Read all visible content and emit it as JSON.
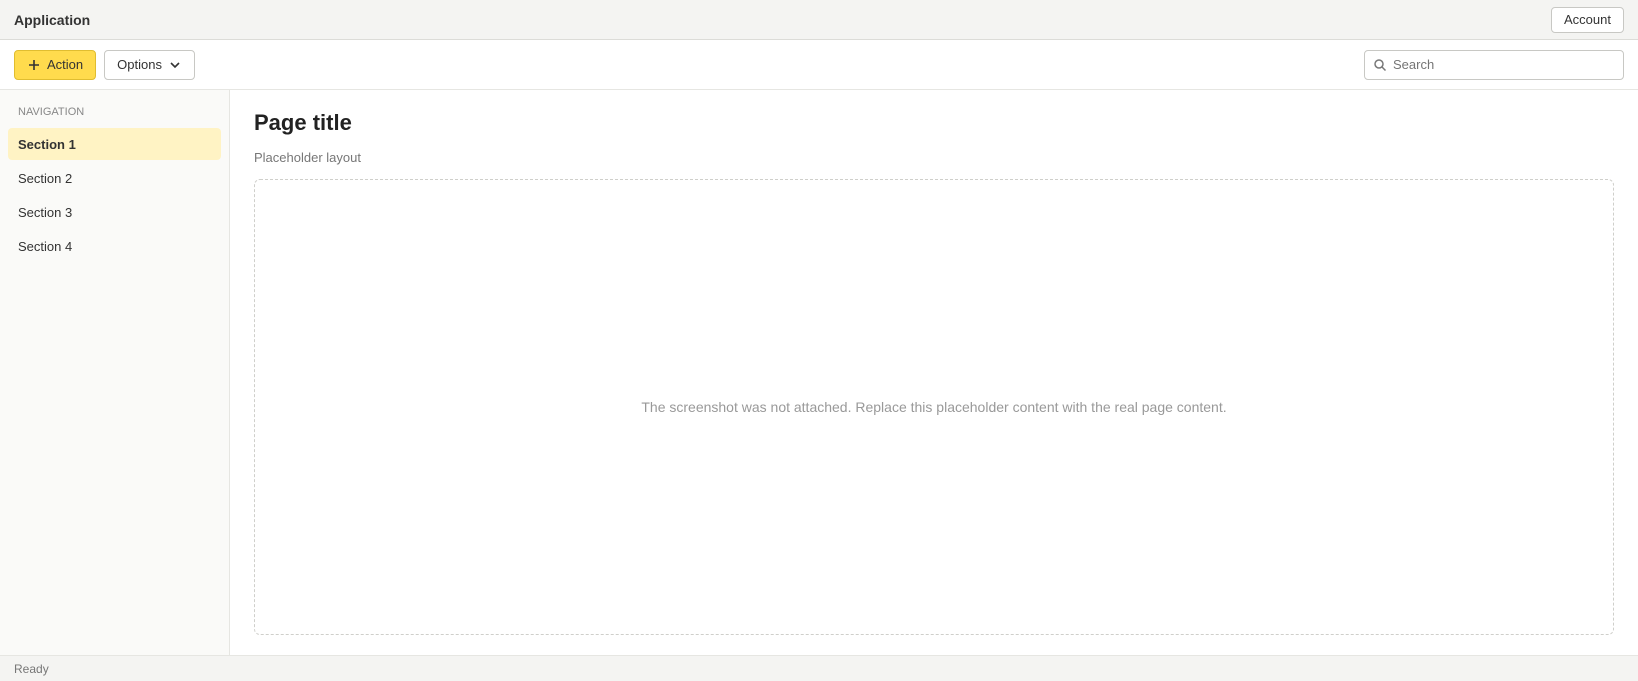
{
  "titlebar": {
    "app_name": "Application",
    "account_label": "Account"
  },
  "toolbar": {
    "primary_label": "Action",
    "secondary_label": "Options",
    "search_placeholder": "Search"
  },
  "sidebar": {
    "heading": "Navigation",
    "items": [
      {
        "label": "Section 1"
      },
      {
        "label": "Section 2"
      },
      {
        "label": "Section 3"
      },
      {
        "label": "Section 4"
      }
    ]
  },
  "main": {
    "title": "Page title",
    "subtitle": "Placeholder layout",
    "notice": "The screenshot was not attached. Replace this placeholder content with the real page content."
  },
  "statusbar": {
    "text": "Ready"
  },
  "colors": {
    "accent": "#ffdb4d",
    "active_item": "#fff3c4"
  }
}
